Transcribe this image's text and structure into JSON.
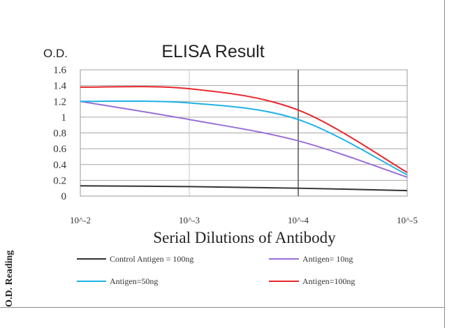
{
  "side_label": "O.D. Reading",
  "chart_data": {
    "type": "line",
    "title": "ELISA Result",
    "ylabel": "O.D.",
    "xlabel": "Serial Dilutions of Antibody",
    "x_categories": [
      "10^-2",
      "10^-3",
      "10^-4",
      "10^-5"
    ],
    "ylim": [
      0,
      1.6
    ],
    "y_ticks": [
      "0",
      "0.2",
      "0.4",
      "0.6",
      "0.8",
      "1",
      "1.2",
      "1.4",
      "1.6"
    ],
    "grid": true,
    "legend_position": "bottom",
    "series": [
      {
        "name": "Control Antigen = 100ng",
        "color": "#333333",
        "values": [
          0.13,
          0.12,
          0.1,
          0.07
        ]
      },
      {
        "name": "Antigen= 10ng",
        "color": "#9b6fd6",
        "values": [
          1.2,
          0.97,
          0.7,
          0.24
        ]
      },
      {
        "name": "Antigen=50ng",
        "color": "#1fb3e6",
        "values": [
          1.2,
          1.18,
          0.97,
          0.27
        ]
      },
      {
        "name": "Antigen=100ng",
        "color": "#e8282c",
        "values": [
          1.38,
          1.36,
          1.09,
          0.3
        ]
      }
    ]
  }
}
